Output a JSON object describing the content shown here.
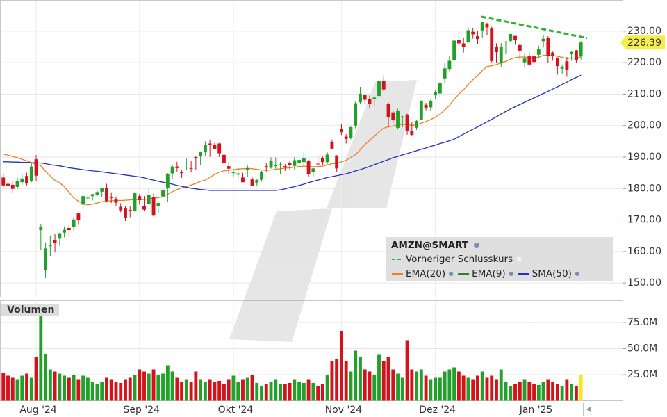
{
  "chart_data": {
    "type": "candlestick",
    "symbol": "AMZN@SMART",
    "categories": [
      null,
      null,
      null,
      null,
      null,
      null,
      null,
      "Aug '24",
      null,
      null,
      null,
      null,
      null,
      null,
      null,
      null,
      null,
      null,
      null,
      null,
      null,
      null,
      null,
      null,
      null,
      null,
      null,
      null,
      null,
      "Sep '24",
      null,
      null,
      null,
      null,
      null,
      null,
      null,
      null,
      null,
      null,
      null,
      null,
      null,
      null,
      null,
      null,
      null,
      null,
      null,
      "Okt '24",
      null,
      null,
      null,
      null,
      null,
      null,
      null,
      null,
      null,
      null,
      null,
      null,
      null,
      null,
      null,
      null,
      null,
      null,
      null,
      null,
      null,
      null,
      "Nov '24",
      null,
      null,
      null,
      null,
      null,
      null,
      null,
      null,
      null,
      null,
      null,
      null,
      null,
      null,
      null,
      null,
      null,
      null,
      null,
      "Dez '24",
      null,
      null,
      null,
      null,
      null,
      null,
      null,
      null,
      null,
      null,
      null,
      null,
      null,
      null,
      null,
      null,
      null,
      null,
      null,
      null,
      "Jan '25",
      null,
      null,
      null,
      null,
      null,
      null,
      null,
      null,
      null,
      null
    ],
    "xlim": [
      -0.7,
      132
    ],
    "ylim": [
      145.4,
      239.9
    ],
    "yticks": [
      {
        "value": 150,
        "label": "150.00"
      },
      {
        "value": 160,
        "label": "160.00"
      },
      {
        "value": 170,
        "label": "170.00"
      },
      {
        "value": 180,
        "label": "180.00"
      },
      {
        "value": 190,
        "label": "190.00"
      },
      {
        "value": 200,
        "label": "200.00"
      },
      {
        "value": 210,
        "label": "210.00"
      },
      {
        "value": 220,
        "label": "220.00"
      },
      {
        "value": 230,
        "label": "230.00"
      }
    ],
    "grid": true,
    "up_color": "#23a02b",
    "down_color": "#d3121b",
    "legend_position": "lower right",
    "ohlc": [
      [
        183.5,
        184.8,
        180.2,
        181.0
      ],
      [
        181.5,
        183.0,
        179.5,
        180.8
      ],
      [
        181.2,
        182.5,
        178.5,
        179.9
      ],
      [
        180.5,
        183.5,
        179.8,
        182.5
      ],
      [
        182.0,
        184.5,
        181.2,
        183.2
      ],
      [
        184.0,
        185.0,
        181.0,
        181.7
      ],
      [
        182.5,
        188.0,
        182.0,
        187.0
      ],
      [
        189.3,
        190.6,
        182.5,
        184.1
      ],
      [
        166.8,
        168.8,
        160.5,
        167.9
      ],
      [
        154.2,
        162.9,
        151.6,
        161.0
      ],
      [
        161.7,
        165.1,
        158.6,
        161.9
      ],
      [
        163.6,
        165.7,
        159.7,
        162.8
      ],
      [
        164.1,
        166.0,
        161.8,
        165.8
      ],
      [
        166.0,
        168.0,
        164.5,
        166.9
      ],
      [
        167.5,
        168.5,
        164.9,
        166.8
      ],
      [
        167.8,
        171.0,
        166.6,
        170.2
      ],
      [
        172.1,
        172.3,
        168.5,
        170.1
      ],
      [
        174.9,
        177.9,
        173.5,
        177.6
      ],
      [
        177.0,
        178.3,
        176.2,
        177.1
      ],
      [
        177.6,
        178.3,
        176.2,
        178.2
      ],
      [
        177.9,
        179.7,
        177.6,
        178.9
      ],
      [
        179.0,
        180.1,
        177.4,
        180.1
      ],
      [
        180.1,
        181.5,
        175.6,
        176.1
      ],
      [
        177.3,
        178.8,
        175.4,
        177.0
      ],
      [
        176.7,
        177.5,
        174.3,
        175.5
      ],
      [
        174.2,
        175.3,
        172.5,
        173.1
      ],
      [
        173.7,
        174.3,
        169.7,
        170.8
      ],
      [
        173.2,
        174.3,
        170.9,
        172.9
      ],
      [
        172.8,
        178.9,
        172.6,
        178.5
      ],
      [
        177.6,
        178.3,
        174.9,
        176.3
      ],
      [
        174.5,
        177.6,
        173.0,
        173.3
      ],
      [
        175.0,
        179.9,
        174.9,
        177.9
      ],
      [
        177.2,
        178.4,
        171.2,
        171.4
      ],
      [
        174.5,
        176.0,
        172.3,
        175.4
      ],
      [
        177.5,
        180.0,
        176.4,
        179.6
      ],
      [
        180.1,
        184.9,
        175.7,
        184.5
      ],
      [
        184.8,
        187.4,
        183.1,
        187.0
      ],
      [
        187.0,
        188.5,
        185.4,
        186.5
      ],
      [
        185.3,
        185.8,
        183.4,
        184.9
      ],
      [
        186.7,
        189.5,
        186.0,
        186.9
      ],
      [
        186.5,
        188.8,
        185.1,
        186.4
      ],
      [
        190.0,
        190.3,
        185.9,
        189.9
      ],
      [
        190.2,
        191.8,
        187.4,
        191.6
      ],
      [
        191.6,
        195.0,
        190.5,
        193.9
      ],
      [
        194.3,
        195.4,
        190.1,
        194.0
      ],
      [
        193.8,
        194.5,
        192.6,
        192.5
      ],
      [
        194.3,
        194.5,
        190.0,
        191.2
      ],
      [
        190.7,
        190.9,
        187.3,
        188.0
      ],
      [
        187.1,
        188.5,
        184.7,
        186.3
      ],
      [
        184.9,
        186.2,
        183.8,
        185.1
      ],
      [
        184.4,
        186.6,
        183.3,
        184.8
      ],
      [
        183.5,
        185.0,
        182.0,
        182.0
      ],
      [
        185.8,
        187.6,
        183.6,
        186.5
      ],
      [
        182.9,
        183.6,
        180.9,
        180.8
      ],
      [
        181.9,
        183.1,
        180.9,
        182.7
      ],
      [
        182.8,
        185.6,
        182.2,
        185.2
      ],
      [
        187.1,
        188.1,
        185.4,
        186.7
      ],
      [
        186.6,
        189.9,
        186.3,
        188.8
      ],
      [
        187.1,
        189.9,
        186.3,
        187.5
      ],
      [
        187.6,
        188.4,
        184.6,
        187.7
      ],
      [
        187.1,
        187.8,
        185.6,
        186.9
      ],
      [
        188.2,
        188.9,
        186.0,
        187.5
      ],
      [
        187.2,
        190.0,
        186.0,
        189.0
      ],
      [
        188.1,
        189.5,
        186.4,
        189.1
      ],
      [
        188.4,
        191.5,
        187.3,
        189.7
      ],
      [
        188.9,
        189.1,
        183.7,
        184.7
      ],
      [
        185.2,
        187.1,
        183.9,
        186.4
      ],
      [
        187.9,
        190.5,
        187.5,
        187.8
      ],
      [
        189.6,
        190.2,
        187.4,
        188.4
      ],
      [
        188.4,
        191.5,
        187.8,
        190.8
      ],
      [
        194.7,
        195.6,
        192.4,
        192.7
      ],
      [
        190.5,
        190.6,
        185.2,
        186.4
      ],
      [
        199.0,
        200.5,
        197.0,
        197.9
      ],
      [
        196.5,
        197.3,
        194.3,
        195.8
      ],
      [
        196.0,
        199.8,
        195.6,
        199.5
      ],
      [
        200.0,
        207.6,
        199.1,
        207.1
      ],
      [
        207.4,
        212.3,
        206.9,
        210.1
      ],
      [
        209.7,
        209.9,
        206.7,
        208.2
      ],
      [
        208.5,
        209.6,
        205.6,
        206.8
      ],
      [
        208.4,
        209.5,
        206.1,
        208.9
      ],
      [
        209.4,
        215.9,
        209.1,
        214.1
      ],
      [
        214.2,
        215.9,
        210.9,
        211.5
      ],
      [
        206.8,
        207.3,
        199.6,
        202.6
      ],
      [
        204.2,
        204.7,
        200.9,
        201.7
      ],
      [
        199.3,
        205.3,
        198.8,
        204.6
      ],
      [
        202.9,
        203.1,
        199.5,
        202.9
      ],
      [
        203.5,
        203.8,
        197.1,
        198.4
      ],
      [
        198.2,
        201.1,
        196.6,
        197.1
      ],
      [
        199.3,
        201.9,
        198.6,
        201.5
      ],
      [
        201.9,
        208.0,
        201.8,
        207.9
      ],
      [
        206.6,
        207.2,
        204.9,
        205.7
      ],
      [
        205.8,
        208.2,
        204.6,
        207.9
      ],
      [
        209.6,
        211.3,
        208.4,
        210.7
      ],
      [
        210.2,
        214.0,
        208.9,
        213.4
      ],
      [
        215.0,
        220.0,
        213.6,
        218.2
      ],
      [
        218.0,
        222.2,
        217.3,
        220.6
      ],
      [
        220.8,
        227.2,
        220.6,
        227.0
      ],
      [
        227.2,
        230.1,
        224.2,
        226.1
      ],
      [
        226.1,
        228.0,
        223.2,
        225.0
      ],
      [
        226.4,
        231.2,
        226.3,
        230.3
      ],
      [
        229.8,
        231.0,
        227.6,
        229.0
      ],
      [
        228.4,
        230.2,
        225.9,
        227.5
      ],
      [
        230.2,
        233.0,
        228.0,
        232.9
      ],
      [
        232.4,
        232.7,
        228.6,
        231.2
      ],
      [
        230.8,
        231.4,
        220.1,
        220.5
      ],
      [
        224.9,
        226.1,
        220.0,
        223.3
      ],
      [
        219.8,
        226.2,
        218.7,
        224.9
      ],
      [
        225.0,
        226.9,
        222.9,
        225.1
      ],
      [
        226.9,
        229.1,
        226.4,
        229.1
      ],
      [
        228.5,
        228.5,
        225.7,
        227.1
      ],
      [
        225.6,
        226.0,
        221.0,
        223.8
      ],
      [
        220.1,
        223.0,
        218.4,
        221.3
      ],
      [
        222.0,
        223.2,
        218.9,
        219.4
      ],
      [
        222.0,
        225.2,
        219.4,
        220.2
      ],
      [
        222.5,
        225.4,
        221.6,
        224.2
      ],
      [
        226.8,
        228.8,
        224.8,
        227.6
      ],
      [
        227.9,
        228.4,
        219.9,
        222.1
      ],
      [
        223.2,
        223.5,
        220.6,
        222.1
      ],
      [
        221.5,
        221.7,
        216.2,
        218.9
      ],
      [
        218.1,
        219.4,
        216.5,
        218.5
      ],
      [
        220.4,
        221.8,
        215.5,
        217.8
      ],
      [
        222.8,
        223.6,
        220.6,
        223.4
      ],
      [
        223.9,
        224.0,
        219.8,
        220.7
      ],
      [
        222.0,
        226.8,
        221.0,
        226.39
      ]
    ],
    "lines": [
      {
        "name": "Vorheriger Schlusskurs",
        "color": "#2cb52c",
        "style": "dashed",
        "x": [
          101.8,
          124.3
        ],
        "values": [
          234.6,
          227.8
        ]
      },
      {
        "name": "EMA(20)",
        "color": "#f07f22",
        "values": [
          191.0,
          190.6,
          190.2,
          189.8,
          189.3,
          188.8,
          188.2,
          187.8,
          187.2,
          185.5,
          184.0,
          182.6,
          181.8,
          180.6,
          178.8,
          177.0,
          176.0,
          175.2,
          174.8,
          175.0,
          175.4,
          175.8,
          176.0,
          176.1,
          176.2,
          176.2,
          176.3,
          176.4,
          176.5,
          176.5,
          176.5,
          176.7,
          176.9,
          177.1,
          177.4,
          178.2,
          179.0,
          179.7,
          180.2,
          180.6,
          181.1,
          181.6,
          182.3,
          182.7,
          183.6,
          184.5,
          185.2,
          185.6,
          185.8,
          186.0,
          186.2,
          186.3,
          186.4,
          186.3,
          186.1,
          185.9,
          185.8,
          185.9,
          186.1,
          186.3,
          186.5,
          186.6,
          186.8,
          187.0,
          187.1,
          187.0,
          186.9,
          187.0,
          187.1,
          187.5,
          187.9,
          188.0,
          188.5,
          189.0,
          189.9,
          190.8,
          192.3,
          194.0,
          195.3,
          196.6,
          198.0,
          199.2,
          199.6,
          199.9,
          200.2,
          200.4,
          200.3,
          200.1,
          200.2,
          200.8,
          201.3,
          201.9,
          202.7,
          203.7,
          205.0,
          206.4,
          208.3,
          210.0,
          211.4,
          213.1,
          214.6,
          215.9,
          217.5,
          218.8,
          219.0,
          219.4,
          219.9,
          220.4,
          221.1,
          221.6,
          221.8,
          221.8,
          221.6,
          221.5,
          221.7,
          222.3,
          222.3,
          222.3,
          222.0,
          221.7,
          221.3,
          221.5,
          221.4,
          221.9
        ]
      },
      {
        "name": "EMA(9)",
        "color": "#2e7d32"
      },
      {
        "name": "SMA(50)",
        "color": "#2130c8",
        "values": [
          188.5,
          188.5,
          188.4,
          188.4,
          188.3,
          188.3,
          188.2,
          188.2,
          188.1,
          187.9,
          187.6,
          187.4,
          187.2,
          186.9,
          186.6,
          186.4,
          186.2,
          186.0,
          185.8,
          185.6,
          185.5,
          185.3,
          185.1,
          184.9,
          184.7,
          184.5,
          184.3,
          184.1,
          183.9,
          183.7,
          183.4,
          183.0,
          182.7,
          182.3,
          182.0,
          181.7,
          181.4,
          181.0,
          180.7,
          180.4,
          180.1,
          179.9,
          179.7,
          179.6,
          179.4,
          179.4,
          179.4,
          179.4,
          179.4,
          179.4,
          179.4,
          179.4,
          179.4,
          179.4,
          179.4,
          179.4,
          179.4,
          179.4,
          179.4,
          179.6,
          179.9,
          180.3,
          180.6,
          181.0,
          181.4,
          181.9,
          182.3,
          182.7,
          183.1,
          183.5,
          183.8,
          184.1,
          184.4,
          184.7,
          185.1,
          185.6,
          186.0,
          186.5,
          187.0,
          187.6,
          188.1,
          188.7,
          189.2,
          189.8,
          190.2,
          190.7,
          191.1,
          191.6,
          192.0,
          192.5,
          192.9,
          193.4,
          193.8,
          194.3,
          194.7,
          195.2,
          195.7,
          196.5,
          197.3,
          198.1,
          198.8,
          199.6,
          200.4,
          201.2,
          202.0,
          202.8,
          203.7,
          204.5,
          205.3,
          206.0,
          206.7,
          207.4,
          208.1,
          208.8,
          209.5,
          210.2,
          210.9,
          211.6,
          212.3,
          213.1,
          213.8,
          214.6,
          215.3,
          216.0
        ]
      }
    ],
    "last_price": 226.39,
    "last_price_color": "#f4ea2a",
    "volume": {
      "title": "Volumen",
      "ylim": [
        0,
        96300000.0
      ],
      "yticks": [
        {
          "value": 25000000.0,
          "label": "25.0M"
        },
        {
          "value": 50000000.0,
          "label": "50.0M"
        },
        {
          "value": 75000000.0,
          "label": "75.0M"
        }
      ],
      "current_color": "#f6e81c",
      "values": [
        27000000.0,
        24000000.0,
        22000000.0,
        20000000.0,
        24000000.0,
        26000000.0,
        22000000.0,
        42000000.0,
        92000000.0,
        45000000.0,
        30000000.0,
        28000000.0,
        26000000.0,
        24000000.0,
        22000000.0,
        25000000.0,
        20000000.0,
        24000000.0,
        22000000.0,
        18000000.0,
        16000000.0,
        18000000.0,
        22000000.0,
        20000000.0,
        18000000.0,
        17000000.0,
        20000000.0,
        22000000.0,
        25000000.0,
        30000000.0,
        28000000.0,
        26000000.0,
        30000000.0,
        25000000.0,
        26000000.0,
        34000000.0,
        28000000.0,
        22000000.0,
        18000000.0,
        20000000.0,
        18000000.0,
        28000000.0,
        20000000.0,
        18000000.0,
        20000000.0,
        18000000.0,
        19000000.0,
        16000000.0,
        20000000.0,
        24000000.0,
        18000000.0,
        20000000.0,
        22000000.0,
        25000000.0,
        17000000.0,
        14000000.0,
        16000000.0,
        18000000.0,
        20000000.0,
        16000000.0,
        16000000.0,
        17000000.0,
        20000000.0,
        18000000.0,
        17000000.0,
        20000000.0,
        17000000.0,
        14000000.0,
        16000000.0,
        25000000.0,
        38000000.0,
        40000000.0,
        67000000.0,
        38000000.0,
        28000000.0,
        48000000.0,
        42000000.0,
        30000000.0,
        28000000.0,
        25000000.0,
        44000000.0,
        38000000.0,
        42000000.0,
        30000000.0,
        26000000.0,
        22000000.0,
        58000000.0,
        30000000.0,
        28000000.0,
        30000000.0,
        24000000.0,
        20000000.0,
        22000000.0,
        22000000.0,
        28000000.0,
        30000000.0,
        32000000.0,
        28000000.0,
        24000000.0,
        22000000.0,
        20000000.0,
        24000000.0,
        28000000.0,
        22000000.0,
        24000000.0,
        20000000.0,
        30000000.0,
        18000000.0,
        14000000.0,
        16000000.0,
        18000000.0,
        20000000.0,
        18000000.0,
        16000000.0,
        15000000.0,
        18000000.0,
        20000000.0,
        18000000.0,
        16000000.0,
        14000000.0,
        20000000.0,
        16000000.0,
        14000000.0,
        25000000.0
      ]
    }
  }
}
